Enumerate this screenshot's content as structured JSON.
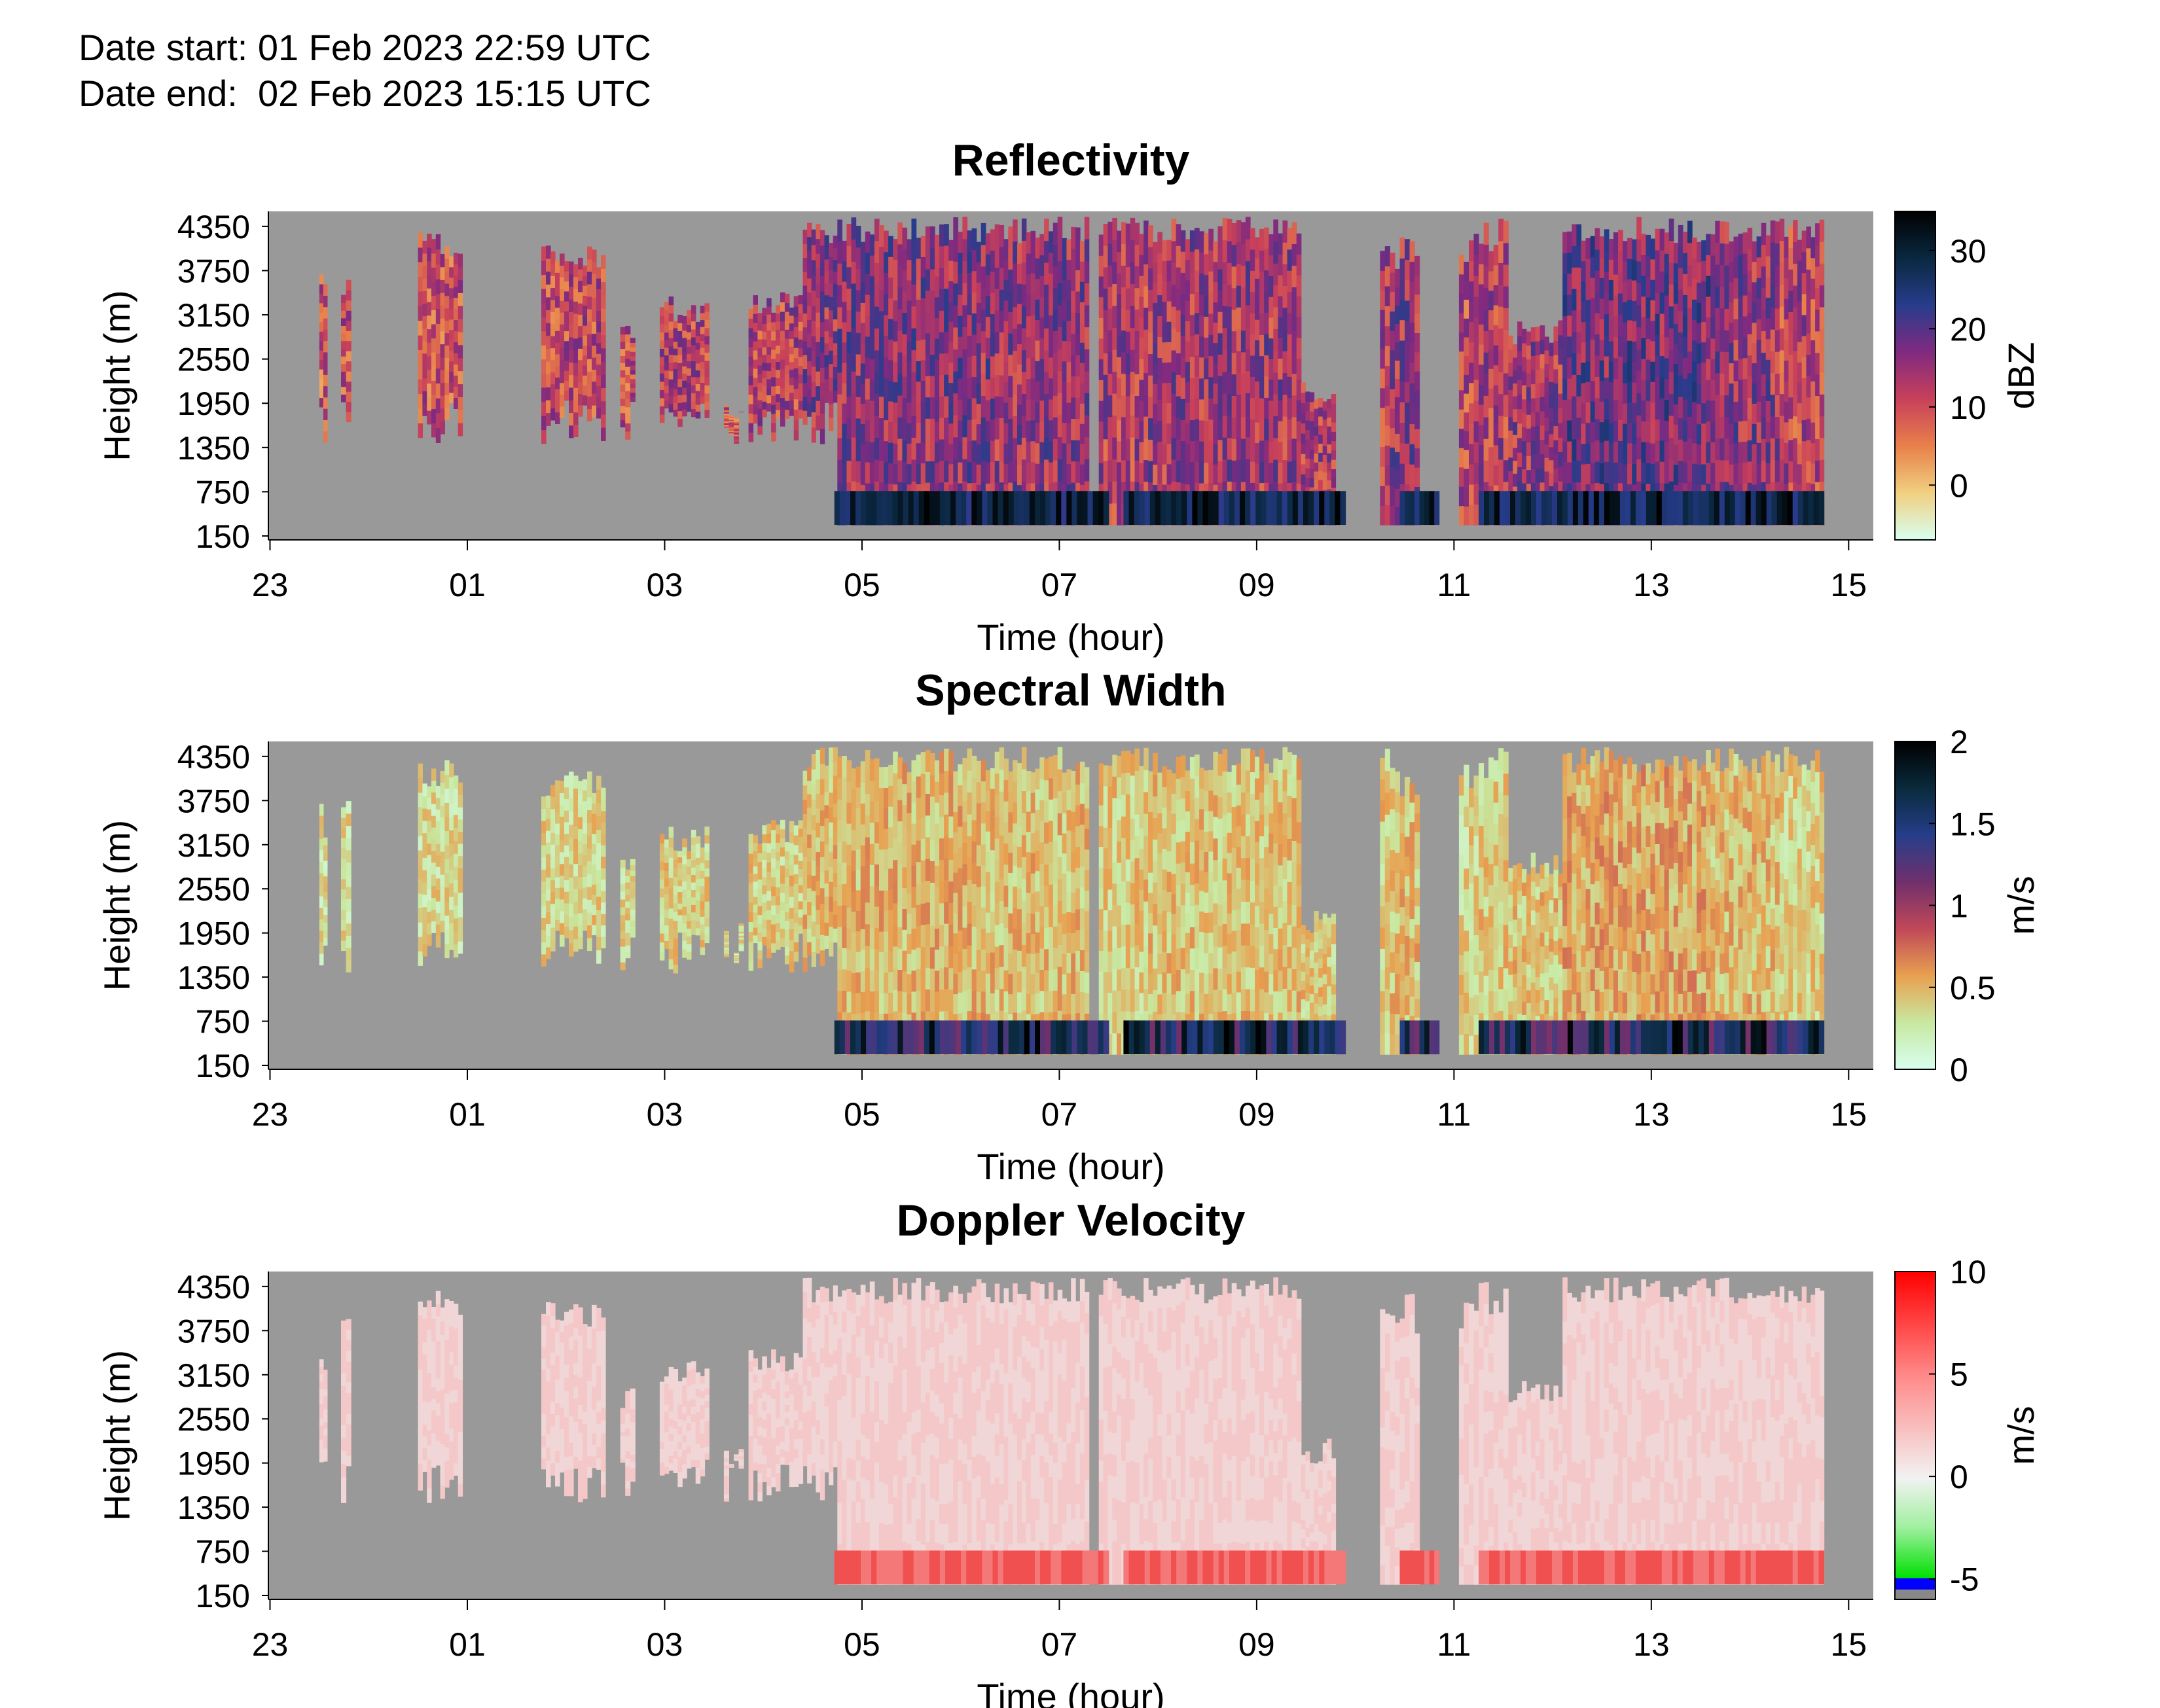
{
  "header": {
    "date_start": "Date start: 01 Feb 2023 22:59 UTC",
    "date_end": "Date end:  02 Feb 2023 15:15 UTC"
  },
  "chart_data": [
    {
      "type": "heatmap",
      "title": "Reflectivity",
      "xlabel": "Time (hour)",
      "ylabel": "Height (m)",
      "x_ticks": [
        "23",
        "01",
        "03",
        "05",
        "07",
        "09",
        "11",
        "13",
        "15"
      ],
      "y_ticks": [
        "4350",
        "3750",
        "3150",
        "2550",
        "1950",
        "1350",
        "750",
        "150"
      ],
      "xlim": [
        "22:59",
        "15:15"
      ],
      "ylim": [
        150,
        4500
      ],
      "colorbar": {
        "label": "dBZ",
        "ticks": [
          "30",
          "20",
          "10",
          "0"
        ],
        "range": [
          -7,
          35
        ],
        "colors": [
          "#d8fff0",
          "#f0d080",
          "#e8804a",
          "#c8405a",
          "#802a80",
          "#283c8c",
          "#0a2840",
          "#000000"
        ]
      },
      "background_color": "#999999",
      "grid": false
    },
    {
      "type": "heatmap",
      "title": "Spectral Width",
      "xlabel": "Time (hour)",
      "ylabel": "Height (m)",
      "x_ticks": [
        "23",
        "01",
        "03",
        "05",
        "07",
        "09",
        "11",
        "13",
        "15"
      ],
      "y_ticks": [
        "4350",
        "3750",
        "3150",
        "2550",
        "1950",
        "1350",
        "750",
        "150"
      ],
      "xlim": [
        "22:59",
        "15:15"
      ],
      "ylim": [
        150,
        4500
      ],
      "colorbar": {
        "label": "m/s",
        "ticks": [
          "2",
          "1.5",
          "1",
          "0.5",
          "0"
        ],
        "range": [
          0,
          2
        ],
        "colors": [
          "#d8fff0",
          "#c8e8a0",
          "#e8a050",
          "#c04858",
          "#70306c",
          "#263e8a",
          "#0a2a3c",
          "#000000"
        ]
      },
      "background_color": "#999999",
      "grid": false
    },
    {
      "type": "heatmap",
      "title": "Doppler Velocity",
      "xlabel": "Time (hour)",
      "ylabel": "Height (m)",
      "x_ticks": [
        "23",
        "01",
        "03",
        "05",
        "07",
        "09",
        "11",
        "13",
        "15"
      ],
      "y_ticks": [
        "4350",
        "3750",
        "3150",
        "2550",
        "1950",
        "1350",
        "750",
        "150"
      ],
      "xlim": [
        "22:59",
        "15:15"
      ],
      "ylim": [
        150,
        4500
      ],
      "colorbar": {
        "label": "m/s",
        "ticks": [
          "10",
          "5",
          "0",
          "-5"
        ],
        "range": [
          -6,
          10
        ],
        "colors": [
          "#ff0000",
          "#ff8a8a",
          "#f2f2f2",
          "#a0f0a0",
          "#00e000",
          "#0000ff",
          "#888888"
        ]
      },
      "background_color": "#999999",
      "grid": false
    }
  ]
}
